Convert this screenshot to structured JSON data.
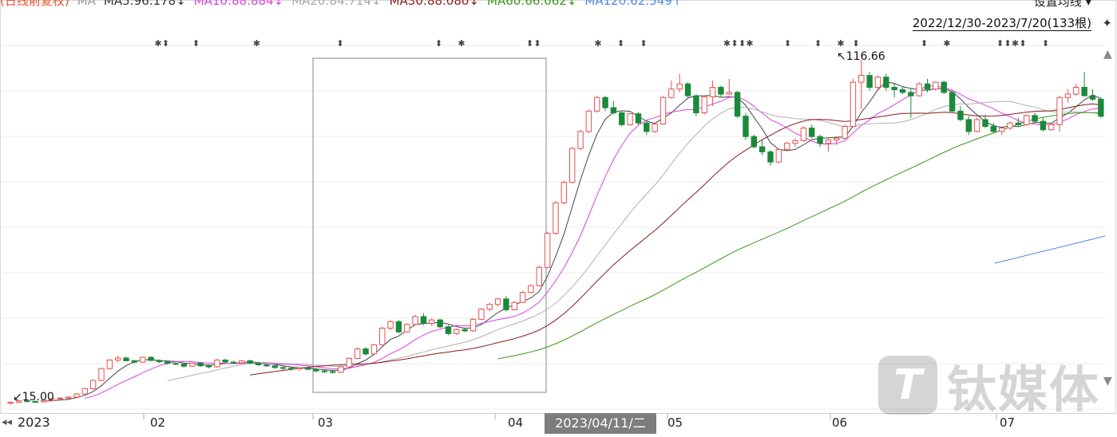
{
  "header": {
    "ma_items": [
      {
        "label": "(日线前复权)",
        "color": "#e8502a"
      },
      {
        "label": "MA",
        "color": "#9a9a9a"
      },
      {
        "label": "MA5:96.178↓",
        "color": "#333333"
      },
      {
        "label": "MA10:88.884↓",
        "color": "#e040e0"
      },
      {
        "label": "MA20:84.714↓",
        "color": "#a8a8a8"
      },
      {
        "label": "MA30:88.080↓",
        "color": "#8b1a1a"
      },
      {
        "label": "MA60:66.062↓",
        "color": "#3a9a1a"
      },
      {
        "label": "MA120:62.549↑",
        "color": "#4a8ae0"
      }
    ],
    "settings_label": "设置均线 ▾",
    "range_label": "2022/12/30-2023/7/20(133根)",
    "pin_icon": "pin-icon"
  },
  "xaxis": {
    "year_label": "2023",
    "nav_left": "◂◂",
    "months": [
      "02",
      "03",
      "04",
      "05",
      "06",
      "07"
    ],
    "crosshair_date": "2023/04/11/二"
  },
  "annotations": {
    "high_label": "↖116.66",
    "low_label": "↙15.00"
  },
  "watermark": {
    "logo": "T",
    "text": "钛媒体"
  },
  "chart_data": {
    "type": "candlestick",
    "title": "",
    "date_range": [
      "2022-12-30",
      "2023-07-20"
    ],
    "bars": 133,
    "high": 116.66,
    "low": 15.0,
    "up_color": "#e85050",
    "down_color": "#1a8a3a",
    "candles": [
      [
        15.5,
        16,
        15,
        15.8
      ],
      [
        15.8,
        16.5,
        15.5,
        16.2
      ],
      [
        16.2,
        16.4,
        15.8,
        16.0
      ],
      [
        16.0,
        16.3,
        15.6,
        15.9
      ],
      [
        15.9,
        16.5,
        15.7,
        16.3
      ],
      [
        16.3,
        17,
        16,
        16.8
      ],
      [
        16.8,
        17.2,
        16.4,
        17.0
      ],
      [
        17.0,
        17.5,
        16.7,
        17.3
      ],
      [
        17.3,
        18.5,
        17,
        18.2
      ],
      [
        18.2,
        20,
        18,
        19.8
      ],
      [
        19.8,
        22.5,
        19.5,
        22.2
      ],
      [
        22.2,
        26,
        22,
        25.7
      ],
      [
        25.7,
        28.5,
        25.4,
        28.2
      ],
      [
        28.2,
        29.5,
        27.5,
        28.8
      ],
      [
        28.8,
        29.2,
        27.8,
        28.0
      ],
      [
        28.0,
        28.3,
        27.2,
        27.6
      ],
      [
        27.6,
        29.2,
        27.4,
        29.0
      ],
      [
        29.0,
        29.3,
        27.8,
        28.1
      ],
      [
        28.1,
        28.4,
        27.3,
        27.7
      ],
      [
        27.7,
        28.0,
        26.8,
        27.2
      ],
      [
        27.2,
        27.6,
        26.6,
        27.0
      ],
      [
        27.0,
        27.3,
        26.0,
        26.4
      ],
      [
        26.4,
        27.5,
        26.2,
        27.3
      ],
      [
        27.3,
        27.6,
        26.2,
        26.5
      ],
      [
        26.5,
        26.9,
        25.8,
        26.2
      ],
      [
        26.2,
        28.5,
        26.0,
        28.2
      ],
      [
        28.2,
        28.6,
        27.2,
        27.6
      ],
      [
        27.6,
        28.0,
        27.0,
        27.4
      ],
      [
        27.4,
        28.2,
        27.2,
        28.0
      ],
      [
        28.0,
        28.3,
        27.0,
        27.3
      ],
      [
        27.3,
        27.7,
        26.5,
        26.8
      ],
      [
        26.8,
        27.2,
        26.2,
        26.5
      ],
      [
        26.5,
        26.9,
        25.6,
        26.0
      ],
      [
        26.0,
        26.4,
        25.3,
        25.8
      ],
      [
        25.8,
        26.2,
        25.0,
        25.6
      ],
      [
        25.6,
        26.1,
        25.1,
        25.9
      ],
      [
        25.9,
        26.3,
        25.2,
        25.5
      ],
      [
        25.5,
        25.9,
        24.6,
        25.0
      ],
      [
        25.0,
        25.4,
        24.3,
        24.8
      ],
      [
        24.8,
        25.1,
        24.2,
        24.6
      ],
      [
        24.6,
        26.5,
        24.4,
        26.2
      ],
      [
        26.2,
        29,
        26,
        28.7
      ],
      [
        28.7,
        32,
        28.5,
        31.5
      ],
      [
        31.5,
        32,
        29.5,
        30.0
      ],
      [
        30.0,
        33,
        29.8,
        32.7
      ],
      [
        32.7,
        38,
        32.5,
        37.6
      ],
      [
        37.6,
        40,
        37,
        39.5
      ],
      [
        39.5,
        40,
        36,
        36.5
      ],
      [
        36.5,
        39,
        36.2,
        38.7
      ],
      [
        38.7,
        41.5,
        38.5,
        41.0
      ],
      [
        41.0,
        42,
        38.5,
        39.0
      ],
      [
        39.0,
        40.5,
        38.2,
        40.0
      ],
      [
        40.0,
        40.4,
        37.5,
        38.0
      ],
      [
        38.0,
        38.5,
        35.5,
        36.0
      ],
      [
        36.0,
        37.5,
        35.6,
        37.2
      ],
      [
        37.2,
        37.6,
        36.4,
        36.8
      ],
      [
        36.8,
        40.5,
        36.5,
        40.2
      ],
      [
        40.2,
        43.5,
        40.0,
        43.2
      ],
      [
        43.2,
        45,
        42.5,
        44.6
      ],
      [
        44.6,
        46.5,
        44,
        46.2
      ],
      [
        46.2,
        47,
        42.5,
        43.0
      ],
      [
        43.0,
        45.5,
        42.8,
        45.2
      ],
      [
        45.2,
        48.5,
        45.0,
        48.1
      ],
      [
        48.1,
        50.5,
        47.8,
        50.1
      ],
      [
        50.1,
        56,
        49.8,
        55.5
      ],
      [
        55.5,
        66,
        55.2,
        65.5
      ],
      [
        65.5,
        75,
        65.0,
        74.5
      ],
      [
        74.5,
        81,
        74.0,
        80.5
      ],
      [
        80.5,
        91,
        80.2,
        90.5
      ],
      [
        90.5,
        96,
        90.0,
        95.5
      ],
      [
        95.5,
        102,
        95,
        101.5
      ],
      [
        101.5,
        106,
        101,
        105.5
      ],
      [
        105.5,
        106,
        101.5,
        102.5
      ],
      [
        102.5,
        104.5,
        100.5,
        101.0
      ],
      [
        101.0,
        101.5,
        97,
        97.5
      ],
      [
        97.5,
        101,
        97.2,
        100.7
      ],
      [
        100.7,
        101.2,
        97.5,
        98.0
      ],
      [
        98.0,
        99,
        94.5,
        95.5
      ],
      [
        95.5,
        98,
        95.0,
        97.7
      ],
      [
        97.7,
        106,
        97.5,
        105.5
      ],
      [
        105.5,
        110.5,
        105.2,
        108.0
      ],
      [
        108.0,
        112.5,
        107.0,
        109.5
      ],
      [
        109.5,
        110,
        105.5,
        106.0
      ],
      [
        106.0,
        106.5,
        100,
        101.0
      ],
      [
        101.0,
        106,
        100.5,
        105.7
      ],
      [
        105.7,
        110.5,
        103,
        108.5
      ],
      [
        108.5,
        109,
        105.5,
        106.5
      ],
      [
        106.5,
        111,
        106.2,
        107.0
      ],
      [
        107.0,
        107.5,
        99.5,
        100.0
      ],
      [
        100.0,
        101,
        93,
        94.0
      ],
      [
        94.0,
        94.5,
        90.5,
        91.0
      ],
      [
        91.0,
        93,
        88.5,
        89.5
      ],
      [
        89.5,
        90,
        85.5,
        86.5
      ],
      [
        86.5,
        90.5,
        86.2,
        90.2
      ],
      [
        90.2,
        92.5,
        89.8,
        92.0
      ],
      [
        92.0,
        93.5,
        91.0,
        92.8
      ],
      [
        92.8,
        97,
        92.5,
        96.5
      ],
      [
        96.5,
        97.5,
        93.5,
        94.0
      ],
      [
        94.0,
        94.5,
        91.0,
        92.0
      ],
      [
        92.0,
        93.5,
        89.5,
        93.0
      ],
      [
        93.0,
        94,
        91.5,
        93.5
      ],
      [
        93.5,
        97.5,
        93.2,
        97.0
      ],
      [
        97.0,
        111,
        96.8,
        110.0
      ],
      [
        110.0,
        116.66,
        102,
        112.0
      ],
      [
        112.0,
        113,
        107.5,
        108.5
      ],
      [
        108.5,
        112,
        108.0,
        111.5
      ],
      [
        111.5,
        112.5,
        107.5,
        108.5
      ],
      [
        108.5,
        109.5,
        105.5,
        107.8
      ],
      [
        107.8,
        108.5,
        106.5,
        107.0
      ],
      [
        107.0,
        108,
        99.5,
        106.0
      ],
      [
        106.0,
        110,
        105.8,
        109.5
      ],
      [
        109.5,
        111,
        107.0,
        108.0
      ],
      [
        108.0,
        110.2,
        107.5,
        110.0
      ],
      [
        110.0,
        110.5,
        106.5,
        107.0
      ],
      [
        107.0,
        107.5,
        101.0,
        101.5
      ],
      [
        101.5,
        103,
        98.5,
        99.0
      ],
      [
        99.0,
        100,
        94.5,
        95.5
      ],
      [
        95.5,
        99.5,
        95.2,
        99.0
      ],
      [
        99.0,
        100.5,
        96.5,
        97.0
      ],
      [
        97.0,
        98.0,
        95.0,
        95.5
      ],
      [
        95.5,
        97,
        94.5,
        96.5
      ],
      [
        96.5,
        98.5,
        96.0,
        98.0
      ],
      [
        98.0,
        99.5,
        97.0,
        97.5
      ],
      [
        97.5,
        100.5,
        97.2,
        100.2
      ],
      [
        100.2,
        101,
        98.0,
        98.5
      ],
      [
        98.5,
        99.5,
        95.5,
        96.0
      ],
      [
        96.0,
        98,
        95.7,
        97.5
      ],
      [
        97.5,
        106,
        95.5,
        105.5
      ],
      [
        105.5,
        108,
        104.0,
        106.5
      ],
      [
        106.5,
        109.5,
        106.0,
        108.5
      ],
      [
        108.5,
        113,
        106.0,
        106.0
      ],
      [
        106.0,
        108,
        104.5,
        105.0
      ],
      [
        105.0,
        105.5,
        99.5,
        100.0
      ]
    ],
    "ma_series": [
      {
        "name": "MA5",
        "last": 96.178,
        "color": "#444444"
      },
      {
        "name": "MA10",
        "last": 88.884,
        "color": "#e040e0"
      },
      {
        "name": "MA20",
        "last": 84.714,
        "color": "#b0b0b0"
      },
      {
        "name": "MA30",
        "last": 88.08,
        "color": "#8b1a1a"
      },
      {
        "name": "MA60",
        "last": 66.062,
        "color": "#3a9a1a"
      },
      {
        "name": "MA120",
        "last": 62.549,
        "color": "#4a8ae0"
      }
    ],
    "ylim": [
      14,
      122
    ]
  }
}
